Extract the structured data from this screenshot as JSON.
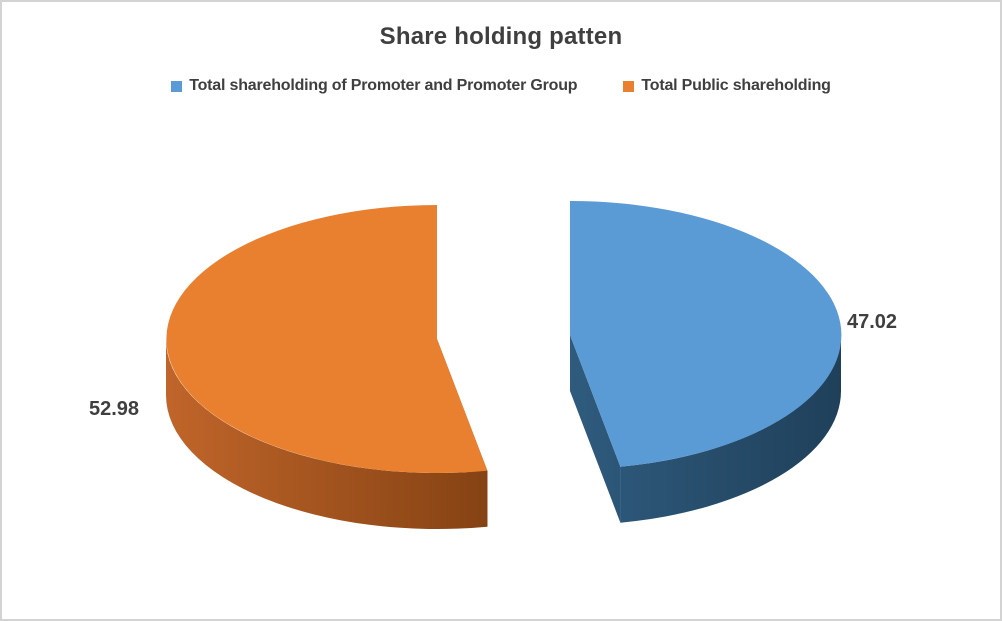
{
  "page": {
    "background": "#ffffff",
    "border_color": "#d3d3d3"
  },
  "chart": {
    "title": "Share holding patten",
    "legend": [
      {
        "label": "Total shareholding of Promoter and Promoter Group",
        "color": "#5B9BD5"
      },
      {
        "label": "Total Public shareholding",
        "color": "#E8802F"
      }
    ]
  },
  "chart_data": {
    "type": "pie",
    "style": "3d-exploded",
    "title": "Share holding patten",
    "labels": [
      "Total shareholding of Promoter and Promoter Group",
      "Total Public shareholding"
    ],
    "values": [
      47.02,
      52.98
    ],
    "data_labels": [
      "47.02",
      "52.98"
    ],
    "colors": [
      "#5B9BD5",
      "#E8802F"
    ],
    "side_colors": [
      [
        "#2F5B7E",
        "#1C3A52"
      ],
      [
        "#C0652A",
        "#7A3C0F"
      ]
    ],
    "start_angle_deg": 0,
    "direction": "clockwise",
    "legend_position": "top",
    "text_color": "#3F3F3F"
  }
}
